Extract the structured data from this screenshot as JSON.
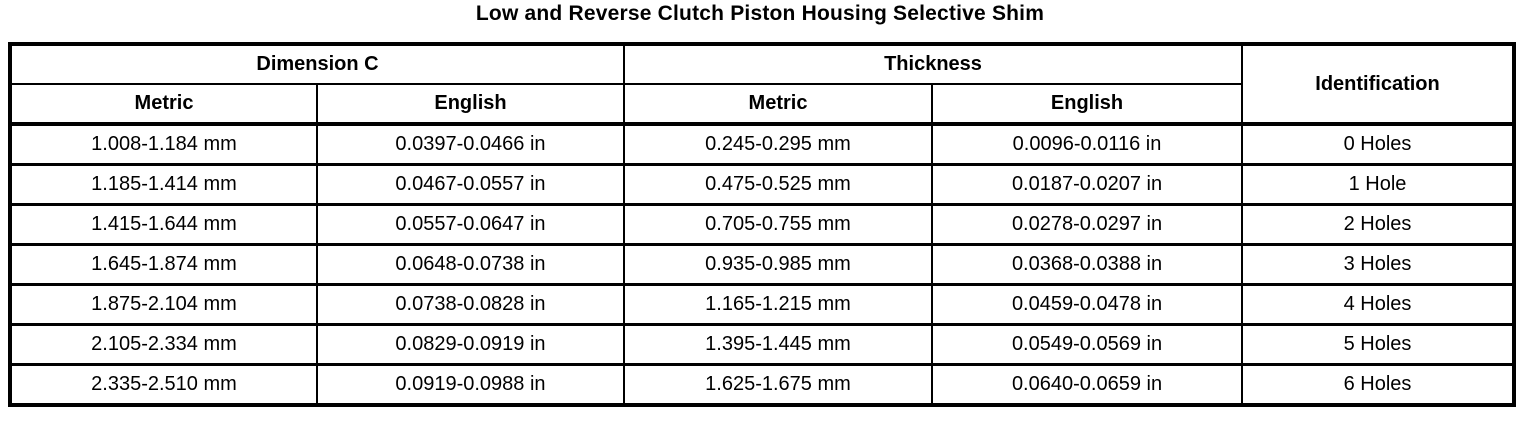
{
  "page": {
    "title": "Low and Reverse Clutch Piston Housing Selective Shim"
  },
  "colors": {
    "background": "#ffffff",
    "border": "#000000",
    "text": "#000000"
  },
  "table": {
    "column_groups": [
      {
        "label": "Dimension C",
        "span": 2
      },
      {
        "label": "Thickness",
        "span": 2
      },
      {
        "label": "Identification",
        "span": 1
      }
    ],
    "sub_headers": [
      "Metric",
      "English",
      "Metric",
      "English"
    ],
    "rows": [
      {
        "dimension_c_metric": "1.008-1.184 mm",
        "dimension_c_english": "0.0397-0.0466 in",
        "thickness_metric": "0.245-0.295 mm",
        "thickness_english": "0.0096-0.0116 in",
        "identification": "0 Holes"
      },
      {
        "dimension_c_metric": "1.185-1.414 mm",
        "dimension_c_english": "0.0467-0.0557 in",
        "thickness_metric": "0.475-0.525 mm",
        "thickness_english": "0.0187-0.0207 in",
        "identification": "1 Hole"
      },
      {
        "dimension_c_metric": "1.415-1.644 mm",
        "dimension_c_english": "0.0557-0.0647 in",
        "thickness_metric": "0.705-0.755 mm",
        "thickness_english": "0.0278-0.0297 in",
        "identification": "2 Holes"
      },
      {
        "dimension_c_metric": "1.645-1.874 mm",
        "dimension_c_english": "0.0648-0.0738 in",
        "thickness_metric": "0.935-0.985 mm",
        "thickness_english": "0.0368-0.0388 in",
        "identification": "3 Holes"
      },
      {
        "dimension_c_metric": "1.875-2.104 mm",
        "dimension_c_english": "0.0738-0.0828 in",
        "thickness_metric": "1.165-1.215 mm",
        "thickness_english": "0.0459-0.0478 in",
        "identification": "4 Holes"
      },
      {
        "dimension_c_metric": "2.105-2.334 mm",
        "dimension_c_english": "0.0829-0.0919 in",
        "thickness_metric": "1.395-1.445 mm",
        "thickness_english": "0.0549-0.0569 in",
        "identification": "5 Holes"
      },
      {
        "dimension_c_metric": "2.335-2.510 mm",
        "dimension_c_english": "0.0919-0.0988 in",
        "thickness_metric": "1.625-1.675 mm",
        "thickness_english": "0.0640-0.0659 in",
        "identification": "6 Holes"
      }
    ]
  }
}
